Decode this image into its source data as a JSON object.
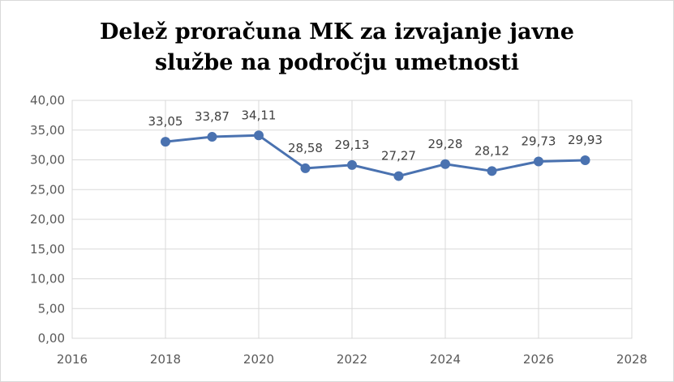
{
  "chart_data": {
    "type": "line",
    "title_lines": [
      "Delež proračuna MK za izvajanje javne",
      "službe na področju umetnosti"
    ],
    "x": [
      2018,
      2019,
      2020,
      2021,
      2022,
      2023,
      2024,
      2025,
      2026,
      2027
    ],
    "series": [
      {
        "values": [
          33.05,
          33.87,
          34.11,
          28.58,
          29.13,
          27.27,
          29.28,
          28.12,
          29.73,
          29.93
        ],
        "labels": [
          "33,05",
          "33,87",
          "34,11",
          "28,58",
          "29,13",
          "27,27",
          "29,28",
          "28,12",
          "29,73",
          "29,93"
        ],
        "color": "#4a72b0"
      }
    ],
    "xlim": [
      2016,
      2028
    ],
    "x_ticks": [
      "2016",
      "2018",
      "2020",
      "2022",
      "2024",
      "2026",
      "2028"
    ],
    "x_tick_values": [
      2016,
      2018,
      2020,
      2022,
      2024,
      2026,
      2028
    ],
    "ylim": [
      0,
      40
    ],
    "y_ticks": [
      "0,00",
      "5,00",
      "10,00",
      "15,00",
      "20,00",
      "25,00",
      "30,00",
      "35,00",
      "40,00"
    ],
    "y_tick_values": [
      0,
      5,
      10,
      15,
      20,
      25,
      30,
      35,
      40
    ],
    "grid": true,
    "grid_color": "#d9d9d9"
  }
}
